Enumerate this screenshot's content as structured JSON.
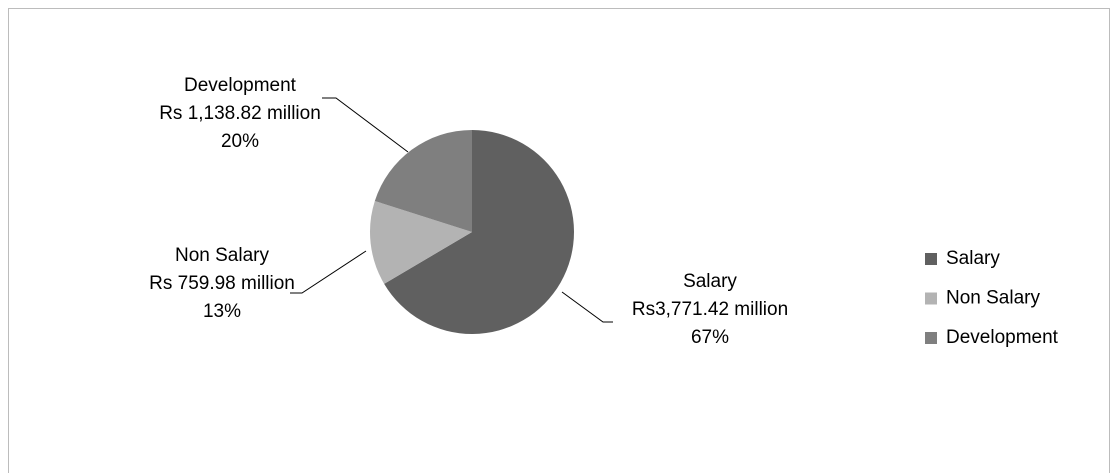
{
  "chart_data": {
    "type": "pie",
    "categories": [
      "Salary",
      "Non Salary",
      "Development"
    ],
    "values": [
      3771.42,
      759.98,
      1138.82
    ],
    "value_labels": [
      "Rs3,771.42 million",
      "Rs 759.98 million",
      "Rs 1,138.82 million"
    ],
    "percents": [
      67,
      13,
      20
    ],
    "percent_labels": [
      "67%",
      "13%",
      "20%"
    ],
    "colors": [
      "#606060",
      "#b3b3b3",
      "#7f7f7f"
    ],
    "legend": "right"
  }
}
